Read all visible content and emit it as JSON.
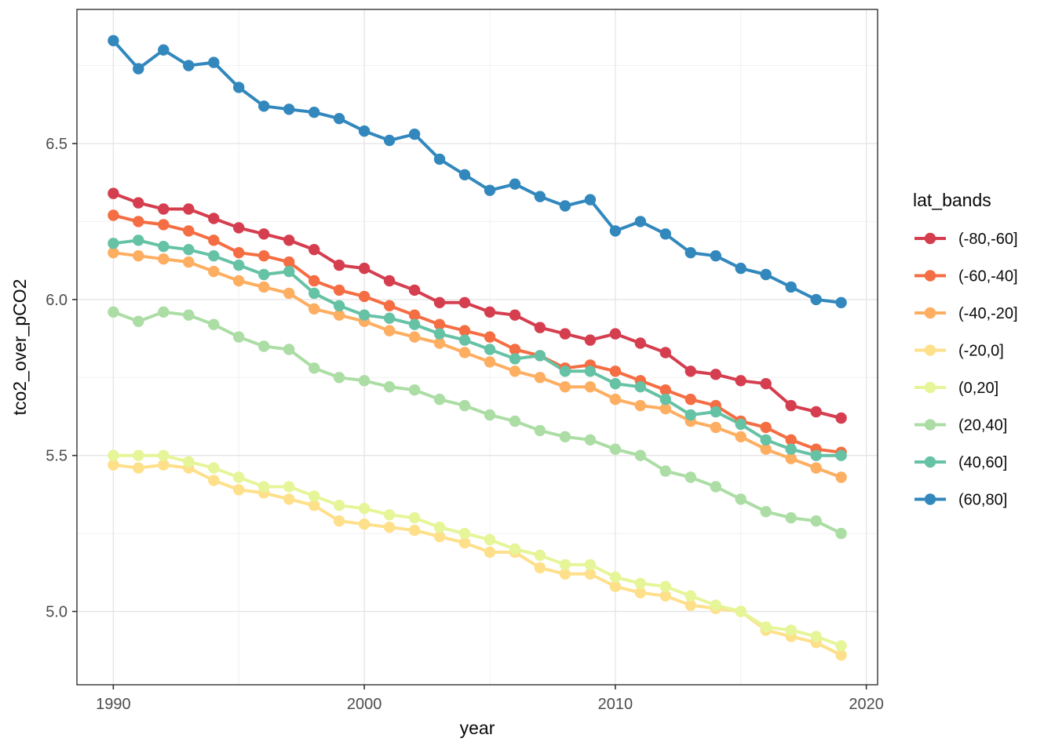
{
  "figure": {
    "x_axis_title": "year",
    "y_axis_title": "tco2_over_pCO2",
    "legend_title": "lat_bands"
  },
  "theme": {
    "background": "#FFFFFF",
    "panel_background": "#FFFFFF",
    "grid_major_color": "#E4E4E4",
    "grid_minor_color": "#F0F0F0",
    "panel_border_color": "#333333",
    "tick_mark_color": "#333333",
    "tick_label_color": "#4D4D4D",
    "text_color": "#0A0A0A"
  },
  "chart_data": {
    "type": "line",
    "title": "",
    "xlabel": "year",
    "ylabel": "tco2_over_pCO2",
    "legend_title": "lat_bands",
    "legend_position": "right",
    "grid": true,
    "marker": "point",
    "xlim": [
      1988.55,
      2020.45
    ],
    "ylim": [
      4.765,
      6.93
    ],
    "x_ticks": [
      1990,
      2000,
      2010,
      2020
    ],
    "x_tick_labels": [
      "1990",
      "2000",
      "2010",
      "2020"
    ],
    "x_minor_ticks": [
      1995,
      2005,
      2015
    ],
    "y_ticks": [
      5.0,
      5.5,
      6.0,
      6.5
    ],
    "y_tick_labels": [
      "5.0",
      "5.5",
      "6.0",
      "6.5"
    ],
    "y_minor_ticks": [
      5.25,
      5.75,
      6.25,
      6.75
    ],
    "x": [
      1990,
      1991,
      1992,
      1993,
      1994,
      1995,
      1996,
      1997,
      1998,
      1999,
      2000,
      2001,
      2002,
      2003,
      2004,
      2005,
      2006,
      2007,
      2008,
      2009,
      2010,
      2011,
      2012,
      2013,
      2014,
      2015,
      2016,
      2017,
      2018,
      2019
    ],
    "series": [
      {
        "name": "(-80,-60]",
        "color": "#D53E4F",
        "values": [
          6.34,
          6.31,
          6.29,
          6.29,
          6.26,
          6.23,
          6.21,
          6.19,
          6.16,
          6.11,
          6.1,
          6.06,
          6.03,
          5.99,
          5.99,
          5.96,
          5.95,
          5.91,
          5.89,
          5.87,
          5.89,
          5.86,
          5.83,
          5.77,
          5.76,
          5.74,
          5.73,
          5.66,
          5.64,
          5.62
        ]
      },
      {
        "name": "(-60,-40]",
        "color": "#F46D43",
        "values": [
          6.27,
          6.25,
          6.24,
          6.22,
          6.19,
          6.15,
          6.14,
          6.12,
          6.06,
          6.03,
          6.01,
          5.98,
          5.95,
          5.92,
          5.9,
          5.88,
          5.84,
          5.82,
          5.78,
          5.79,
          5.77,
          5.74,
          5.71,
          5.68,
          5.66,
          5.61,
          5.59,
          5.55,
          5.52,
          5.51
        ]
      },
      {
        "name": "(-40,-20]",
        "color": "#FDAE61",
        "values": [
          6.15,
          6.14,
          6.13,
          6.12,
          6.09,
          6.06,
          6.04,
          6.02,
          5.97,
          5.95,
          5.93,
          5.9,
          5.88,
          5.86,
          5.83,
          5.8,
          5.77,
          5.75,
          5.72,
          5.72,
          5.68,
          5.66,
          5.65,
          5.61,
          5.59,
          5.56,
          5.52,
          5.49,
          5.46,
          5.43
        ]
      },
      {
        "name": "(-20,0]",
        "color": "#FEE08B",
        "values": [
          5.47,
          5.46,
          5.47,
          5.46,
          5.42,
          5.39,
          5.38,
          5.36,
          5.34,
          5.29,
          5.28,
          5.27,
          5.26,
          5.24,
          5.22,
          5.19,
          5.19,
          5.14,
          5.12,
          5.12,
          5.08,
          5.06,
          5.05,
          5.02,
          5.01,
          5.0,
          4.94,
          4.92,
          4.9,
          4.86
        ]
      },
      {
        "name": "(0,20]",
        "color": "#E6F598",
        "values": [
          5.5,
          5.5,
          5.5,
          5.48,
          5.46,
          5.43,
          5.4,
          5.4,
          5.37,
          5.34,
          5.33,
          5.31,
          5.3,
          5.27,
          5.25,
          5.23,
          5.2,
          5.18,
          5.15,
          5.15,
          5.11,
          5.09,
          5.08,
          5.05,
          5.02,
          5.0,
          4.95,
          4.94,
          4.92,
          4.89
        ]
      },
      {
        "name": "(20,40]",
        "color": "#ABDDA4",
        "values": [
          5.96,
          5.93,
          5.96,
          5.95,
          5.92,
          5.88,
          5.85,
          5.84,
          5.78,
          5.75,
          5.74,
          5.72,
          5.71,
          5.68,
          5.66,
          5.63,
          5.61,
          5.58,
          5.56,
          5.55,
          5.52,
          5.5,
          5.45,
          5.43,
          5.4,
          5.36,
          5.32,
          5.3,
          5.29,
          5.25
        ]
      },
      {
        "name": "(40,60]",
        "color": "#66C2A5",
        "values": [
          6.18,
          6.19,
          6.17,
          6.16,
          6.14,
          6.11,
          6.08,
          6.09,
          6.02,
          5.98,
          5.95,
          5.94,
          5.92,
          5.89,
          5.87,
          5.84,
          5.81,
          5.82,
          5.77,
          5.77,
          5.73,
          5.72,
          5.68,
          5.63,
          5.64,
          5.6,
          5.55,
          5.52,
          5.5,
          5.5
        ]
      },
      {
        "name": "(60,80]",
        "color": "#3288BD",
        "values": [
          6.83,
          6.74,
          6.8,
          6.75,
          6.76,
          6.68,
          6.62,
          6.61,
          6.6,
          6.58,
          6.54,
          6.51,
          6.53,
          6.45,
          6.4,
          6.35,
          6.37,
          6.33,
          6.3,
          6.32,
          6.22,
          6.25,
          6.21,
          6.15,
          6.14,
          6.1,
          6.08,
          6.04,
          6.0,
          5.99
        ]
      }
    ]
  }
}
